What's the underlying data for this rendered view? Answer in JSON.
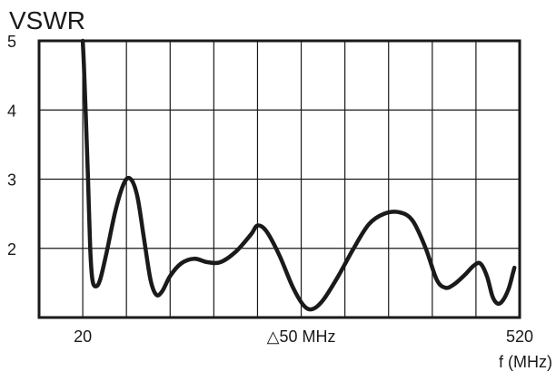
{
  "chart_data": {
    "type": "line",
    "title": "VSWR",
    "xlabel": "f (MHz)",
    "ylabel": "",
    "ylim": [
      1,
      5
    ],
    "xlim": [
      0,
      11
    ],
    "yticks": [
      2,
      3,
      4,
      5
    ],
    "xtick_labels": [
      {
        "x": 1,
        "label": "20"
      },
      {
        "x": 6,
        "label": "△50 MHz"
      },
      {
        "x": 11,
        "label": "520"
      }
    ],
    "grid": true,
    "series": [
      {
        "values": [
          [
            1.0,
            5.0
          ],
          [
            1.03,
            4.6
          ],
          [
            1.07,
            3.9
          ],
          [
            1.12,
            3.0
          ],
          [
            1.17,
            2.0
          ],
          [
            1.22,
            1.55
          ],
          [
            1.3,
            1.45
          ],
          [
            1.4,
            1.55
          ],
          [
            1.55,
            1.95
          ],
          [
            1.75,
            2.55
          ],
          [
            1.95,
            2.95
          ],
          [
            2.1,
            3.0
          ],
          [
            2.25,
            2.75
          ],
          [
            2.4,
            2.15
          ],
          [
            2.55,
            1.55
          ],
          [
            2.68,
            1.33
          ],
          [
            2.82,
            1.38
          ],
          [
            3.0,
            1.6
          ],
          [
            3.25,
            1.78
          ],
          [
            3.55,
            1.85
          ],
          [
            3.85,
            1.8
          ],
          [
            4.15,
            1.8
          ],
          [
            4.5,
            1.95
          ],
          [
            4.85,
            2.2
          ],
          [
            5.0,
            2.33
          ],
          [
            5.2,
            2.25
          ],
          [
            5.5,
            1.9
          ],
          [
            5.8,
            1.45
          ],
          [
            6.05,
            1.18
          ],
          [
            6.25,
            1.12
          ],
          [
            6.5,
            1.25
          ],
          [
            6.85,
            1.6
          ],
          [
            7.2,
            2.0
          ],
          [
            7.55,
            2.35
          ],
          [
            7.9,
            2.5
          ],
          [
            8.25,
            2.52
          ],
          [
            8.55,
            2.4
          ],
          [
            8.85,
            2.0
          ],
          [
            9.1,
            1.55
          ],
          [
            9.3,
            1.43
          ],
          [
            9.5,
            1.48
          ],
          [
            9.75,
            1.62
          ],
          [
            9.95,
            1.75
          ],
          [
            10.1,
            1.78
          ],
          [
            10.25,
            1.6
          ],
          [
            10.38,
            1.3
          ],
          [
            10.5,
            1.2
          ],
          [
            10.62,
            1.25
          ],
          [
            10.75,
            1.42
          ],
          [
            10.85,
            1.65
          ],
          [
            10.88,
            1.72
          ]
        ],
        "color": "#1a1a1a"
      }
    ]
  }
}
